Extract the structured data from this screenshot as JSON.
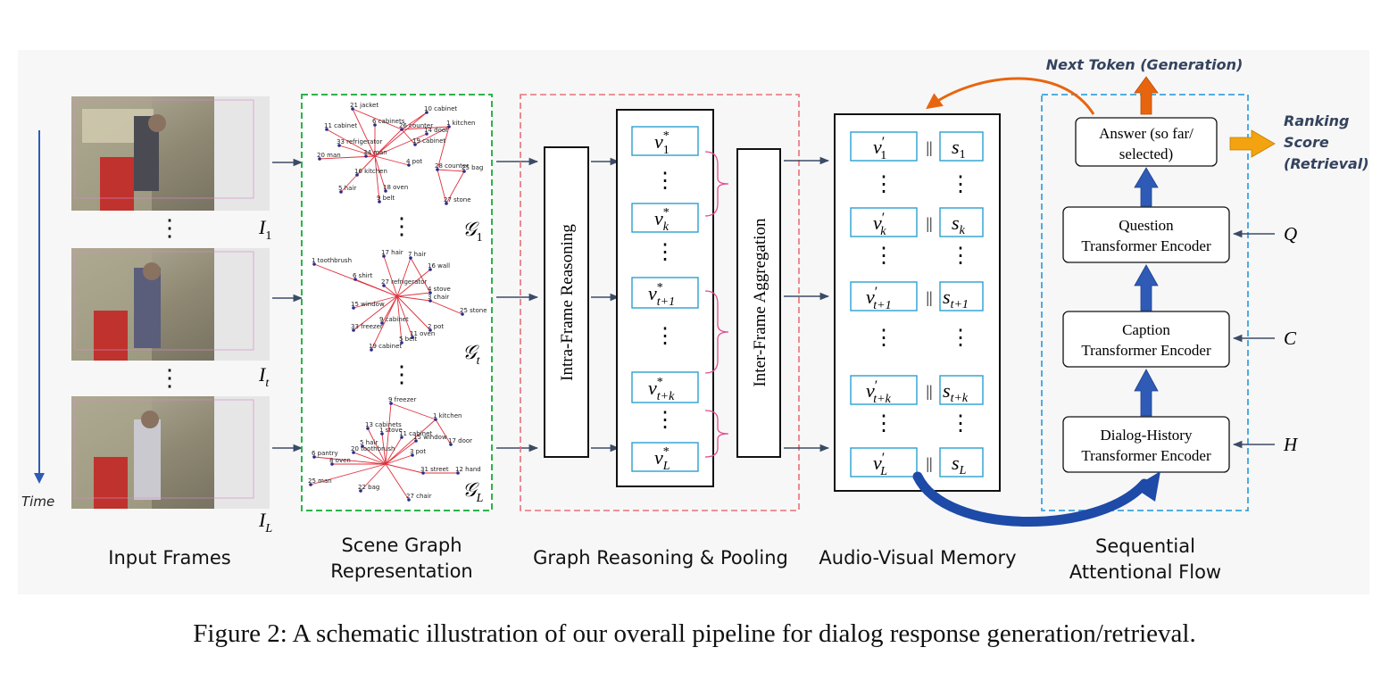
{
  "figure": {
    "caption": "Figure 2: A schematic illustration of our overall pipeline for dialog response generation/retrieval."
  },
  "time_label": "Time",
  "input_frames": {
    "title": "Input Frames",
    "frame_labels": [
      {
        "base": "I",
        "sub": "1"
      },
      {
        "base": "I",
        "sub": "t"
      },
      {
        "base": "I",
        "sub": "L"
      }
    ]
  },
  "scene_graph": {
    "title_line1": "Scene Graph",
    "title_line2": "Representation",
    "graph_labels": [
      {
        "base": "𝒢",
        "sub": "1"
      },
      {
        "base": "𝒢",
        "sub": "t"
      },
      {
        "base": "𝒢",
        "sub": "L"
      }
    ],
    "graph1_nodes": [
      "21 jacket",
      "10 cabinet",
      "6 cabinets",
      "11 cabinet",
      "26 counter",
      "14 door",
      "1 kitchen",
      "33 refrigerator",
      "19 cabinet",
      "20 man",
      "34 man",
      "4 pot",
      "28 counter",
      "25 bag",
      "16 kitchen",
      "5 hair",
      "18 oven",
      "27 stone",
      "9 belt"
    ],
    "graph2_nodes": [
      "17 hair",
      "7 hair",
      "1 toothbrush",
      "16 wall",
      "6 shirt",
      "27 refrigerator",
      "4 stove",
      "3 chair",
      "15 window",
      "25 stone",
      "9 cabinet",
      "2 pot",
      "33 freezer",
      "11 oven",
      "5 belt",
      "19 cabinet"
    ],
    "graph3_nodes": [
      "9 freezer",
      "13 cabinets",
      "1 kitchen",
      "1 stove",
      "11 cabinet",
      "15 window",
      "17 door",
      "5 hair",
      "3 pot",
      "20 toothbrush",
      "6 pantry",
      "8 oven",
      "31 street",
      "12 hand",
      "25 man",
      "22 bag",
      "27 chair"
    ]
  },
  "graph_reasoning": {
    "title": "Graph Reasoning & Pooling",
    "intra_label": "Intra-Frame Reasoning",
    "inter_label": "Inter-Frame Aggregation",
    "nodes": [
      {
        "base": "v",
        "sup": "*",
        "sub": "1"
      },
      {
        "base": "v",
        "sup": "*",
        "sub": "k"
      },
      {
        "base": "v",
        "sup": "*",
        "sub": "t+1"
      },
      {
        "base": "v",
        "sup": "*",
        "sub": "t+k"
      },
      {
        "base": "v",
        "sup": "*",
        "sub": "L"
      }
    ]
  },
  "memory": {
    "title": "Audio-Visual Memory",
    "separator": "||",
    "rows": [
      {
        "v_base": "v",
        "v_sup": "′",
        "v_sub": "1",
        "s_base": "s",
        "s_sub": "1"
      },
      {
        "v_base": "v",
        "v_sup": "′",
        "v_sub": "k",
        "s_base": "s",
        "s_sub": "k"
      },
      {
        "v_base": "v",
        "v_sup": "′",
        "v_sub": "t+1",
        "s_base": "s",
        "s_sub": "t+1"
      },
      {
        "v_base": "v",
        "v_sup": "′",
        "v_sub": "t+k",
        "s_base": "s",
        "s_sub": "t+k"
      },
      {
        "v_base": "v",
        "v_sup": "′",
        "v_sub": "L",
        "s_base": "s",
        "s_sub": "L"
      }
    ]
  },
  "attentional_flow": {
    "title_line1": "Sequential",
    "title_line2": "Attentional Flow",
    "answer_line1": "Answer (so far/",
    "answer_line2": "selected)",
    "question_line1": "Question",
    "question_line2": "Transformer Encoder",
    "caption_line1": "Caption",
    "caption_line2": "Transformer Encoder",
    "history_line1": "Dialog-History",
    "history_line2": "Transformer Encoder",
    "q_symbol": "Q",
    "c_symbol": "C",
    "h_symbol": "H",
    "next_token": "Next Token (Generation)",
    "ranking_line1": "Ranking",
    "ranking_line2": "Score",
    "ranking_line3": "(Retrieval)"
  },
  "colors": {
    "scene_border": "#2db34a",
    "reasoning_border": "#e8707a",
    "flow_border": "#3aa3e0",
    "graph_edge": "#e0303c",
    "node_box_border": "#2a9fd0",
    "blue_arrow": "#2f5bb7",
    "orange_arrow": "#e8650f",
    "gold_arrow": "#f2a30f",
    "label_navy": "#34435e",
    "connector": "#3b4b66"
  }
}
